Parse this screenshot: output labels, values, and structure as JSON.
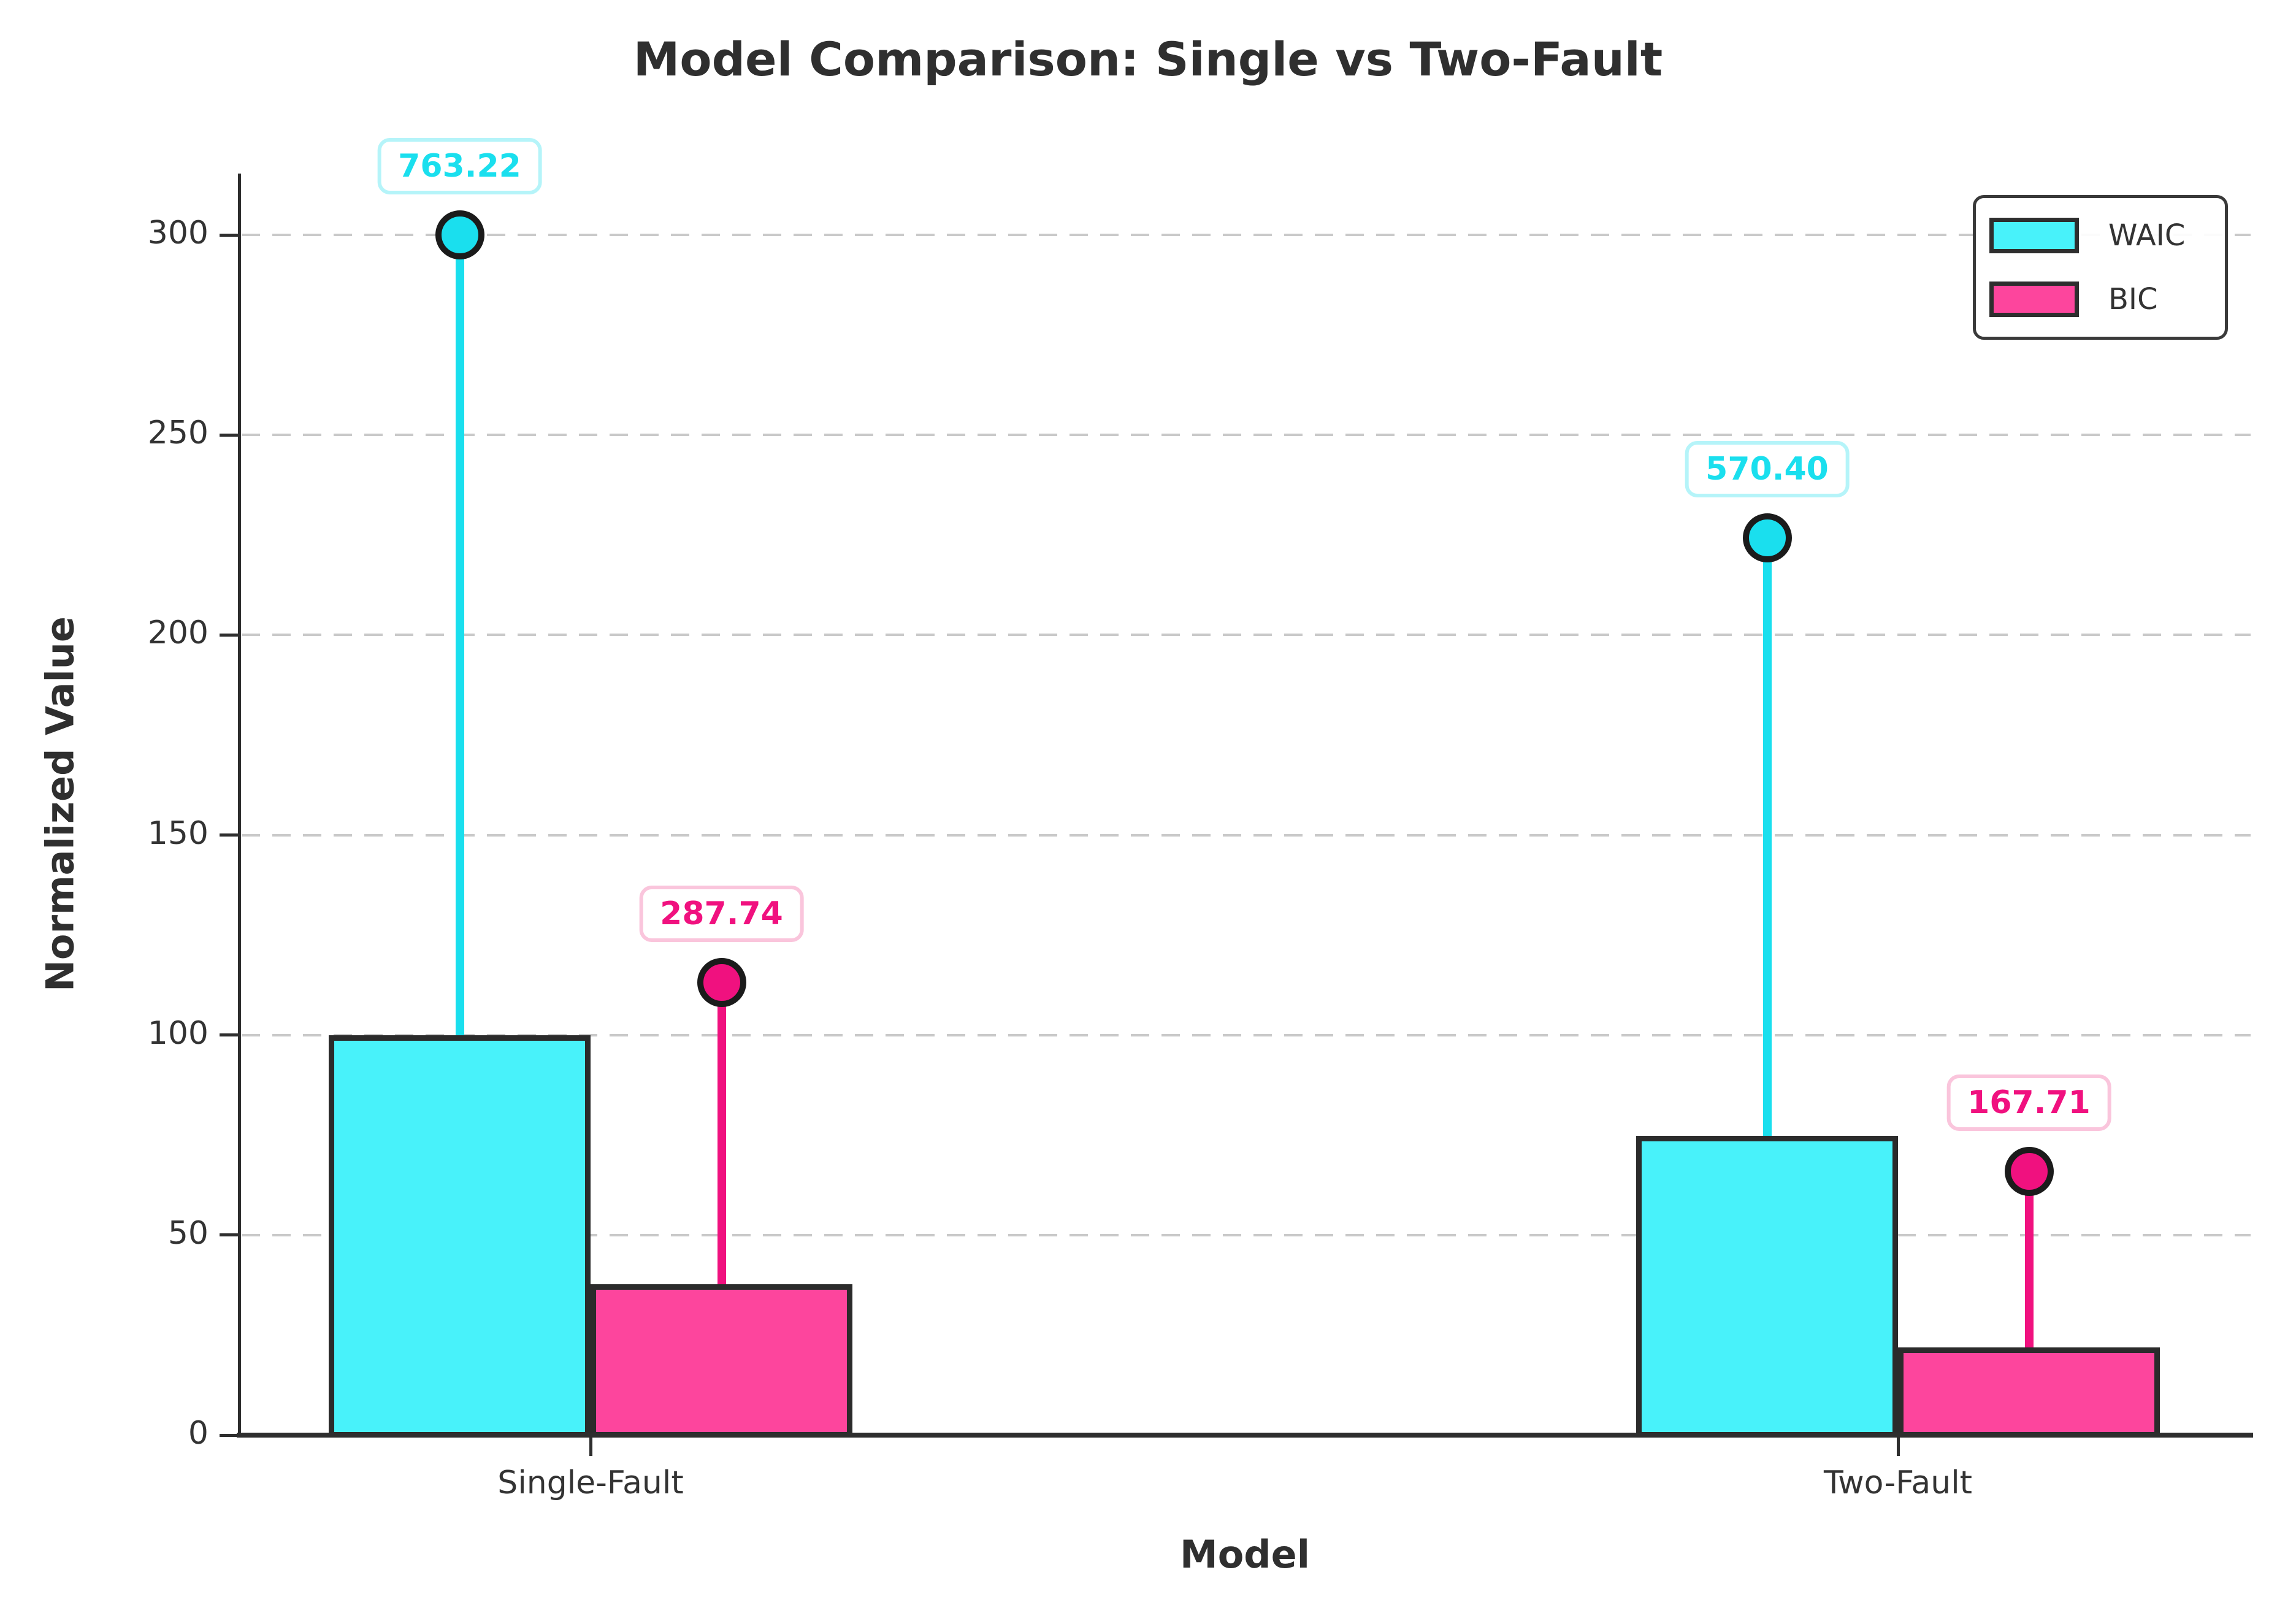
{
  "chart_data": {
    "type": "bar",
    "title": "Model Comparison: Single vs Two-Fault",
    "xlabel": "Model",
    "ylabel": "Normalized Value",
    "categories": [
      "Single-Fault",
      "Two-Fault"
    ],
    "series": [
      {
        "name": "WAIC",
        "values": [
          763.22,
          570.4
        ],
        "bar_heights_normalized": [
          100.0,
          74.74
        ],
        "marker_heights_normalized": [
          300.0,
          224.21
        ],
        "annotation_labels": [
          "763.22",
          "570.40"
        ],
        "fill": "#48f2fa",
        "accent": "#1adfee",
        "annotation_border": "#b5f4f9"
      },
      {
        "name": "BIC",
        "values": [
          287.74,
          167.71
        ],
        "bar_heights_normalized": [
          37.7,
          21.97
        ],
        "marker_heights_normalized": [
          113.1,
          65.92
        ],
        "annotation_labels": [
          "287.74",
          "167.71"
        ],
        "fill": "#fd459d",
        "accent": "#f0117f",
        "annotation_border": "#fac5dc"
      }
    ],
    "yticks": [
      0,
      50,
      100,
      150,
      200,
      250,
      300
    ],
    "ylim": [
      0,
      315
    ],
    "grid": {
      "axis": "y",
      "linestyle": "dashed",
      "color": "#c9c9c9"
    },
    "legend": {
      "position": "upper right",
      "entries": [
        "WAIC",
        "BIC"
      ]
    }
  },
  "colors": {
    "background": "#ffffff",
    "axis": "#2e2e2e",
    "text": "#333333",
    "bar_edge": "#2b2b2b",
    "marker_edge": "#1b1b1b"
  }
}
